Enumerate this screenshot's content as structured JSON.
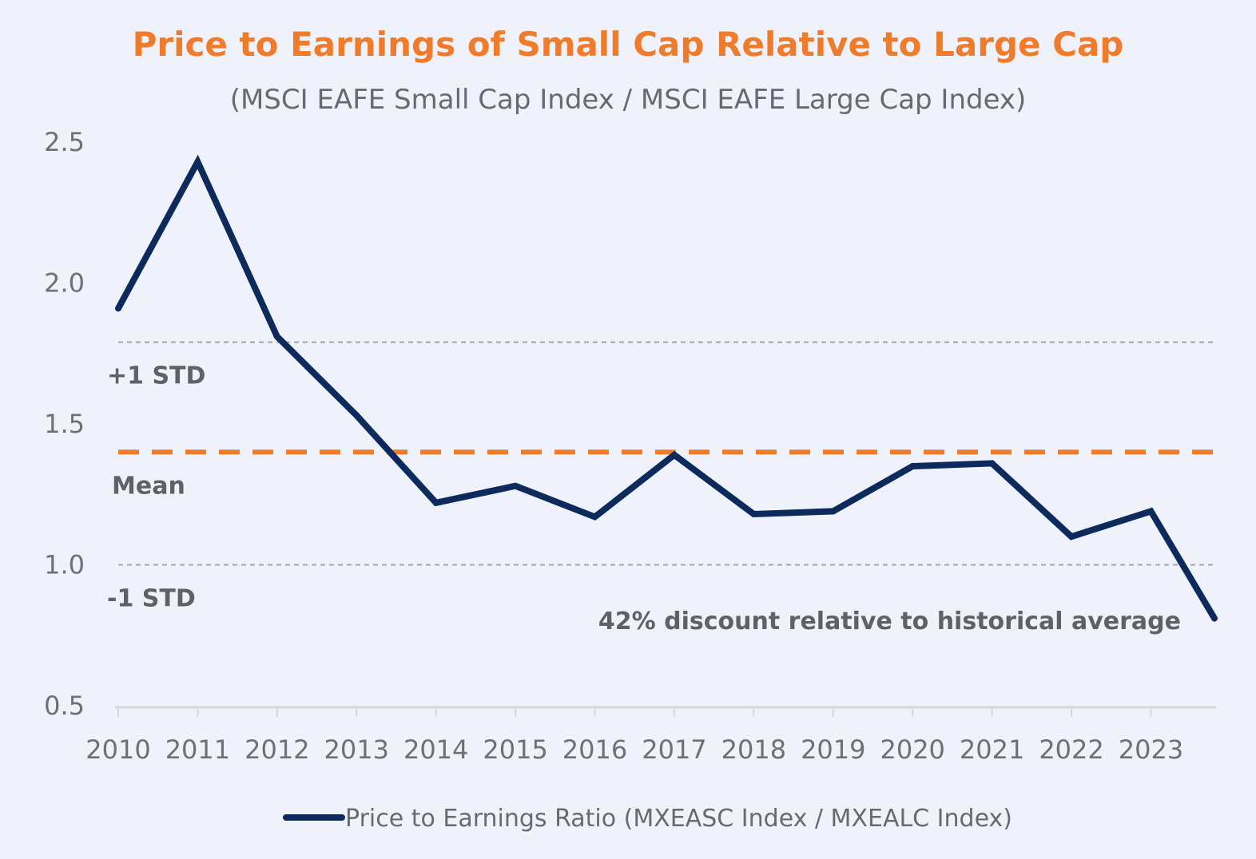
{
  "chart_data": {
    "type": "line",
    "title": "Price to Earnings of Small Cap Relative to Large Cap",
    "subtitle": "(MSCI EAFE Small Cap Index / MSCI EAFE Large Cap Index)",
    "xlabel": "",
    "ylabel": "",
    "ylim": [
      0.5,
      2.5
    ],
    "xlim": [
      2010,
      2023.8
    ],
    "y_ticks": [
      "2.5",
      "2.0",
      "1.5",
      "1.0",
      "0.5"
    ],
    "x_ticks": [
      "2010",
      "2011",
      "2012",
      "2013",
      "2014",
      "2015",
      "2016",
      "2017",
      "2018",
      "2019",
      "2020",
      "2021",
      "2022",
      "2023"
    ],
    "grid": false,
    "legend_position": "bottom-center",
    "series": [
      {
        "name": "Price to Earnings Ratio (MXEASC Index / MXEALC Index)",
        "color": "#0d2a5c",
        "x": [
          2010,
          2011,
          2012,
          2013,
          2014,
          2015,
          2016,
          2017,
          2018,
          2019,
          2020,
          2021,
          2022,
          2023,
          2023.8
        ],
        "values": [
          1.91,
          2.43,
          1.81,
          1.53,
          1.22,
          1.28,
          1.17,
          1.39,
          1.18,
          1.19,
          1.35,
          1.36,
          1.1,
          1.19,
          0.81
        ]
      }
    ],
    "reference_lines": [
      {
        "label": "+1 STD",
        "value": 1.79,
        "style": "dotted",
        "color": "#a3a6ab"
      },
      {
        "label": "Mean",
        "value": 1.4,
        "style": "dashed",
        "color": "#f07b2b"
      },
      {
        "label": "-1 STD",
        "value": 1.0,
        "style": "dotted",
        "color": "#a3a6ab"
      }
    ],
    "annotations": [
      {
        "text": "42% discount relative to historical average"
      }
    ]
  }
}
